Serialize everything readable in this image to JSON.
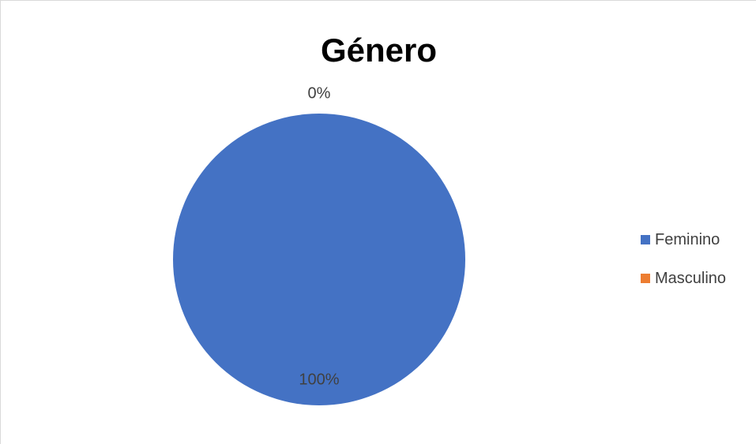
{
  "chart_data": {
    "type": "pie",
    "title": "Género",
    "categories": [
      "Feminino",
      "Masculino"
    ],
    "values": [
      100,
      0
    ],
    "data_labels": [
      "100%",
      "0%"
    ],
    "colors": [
      "#4472c4",
      "#ed7d31"
    ],
    "legend_position": "right"
  }
}
